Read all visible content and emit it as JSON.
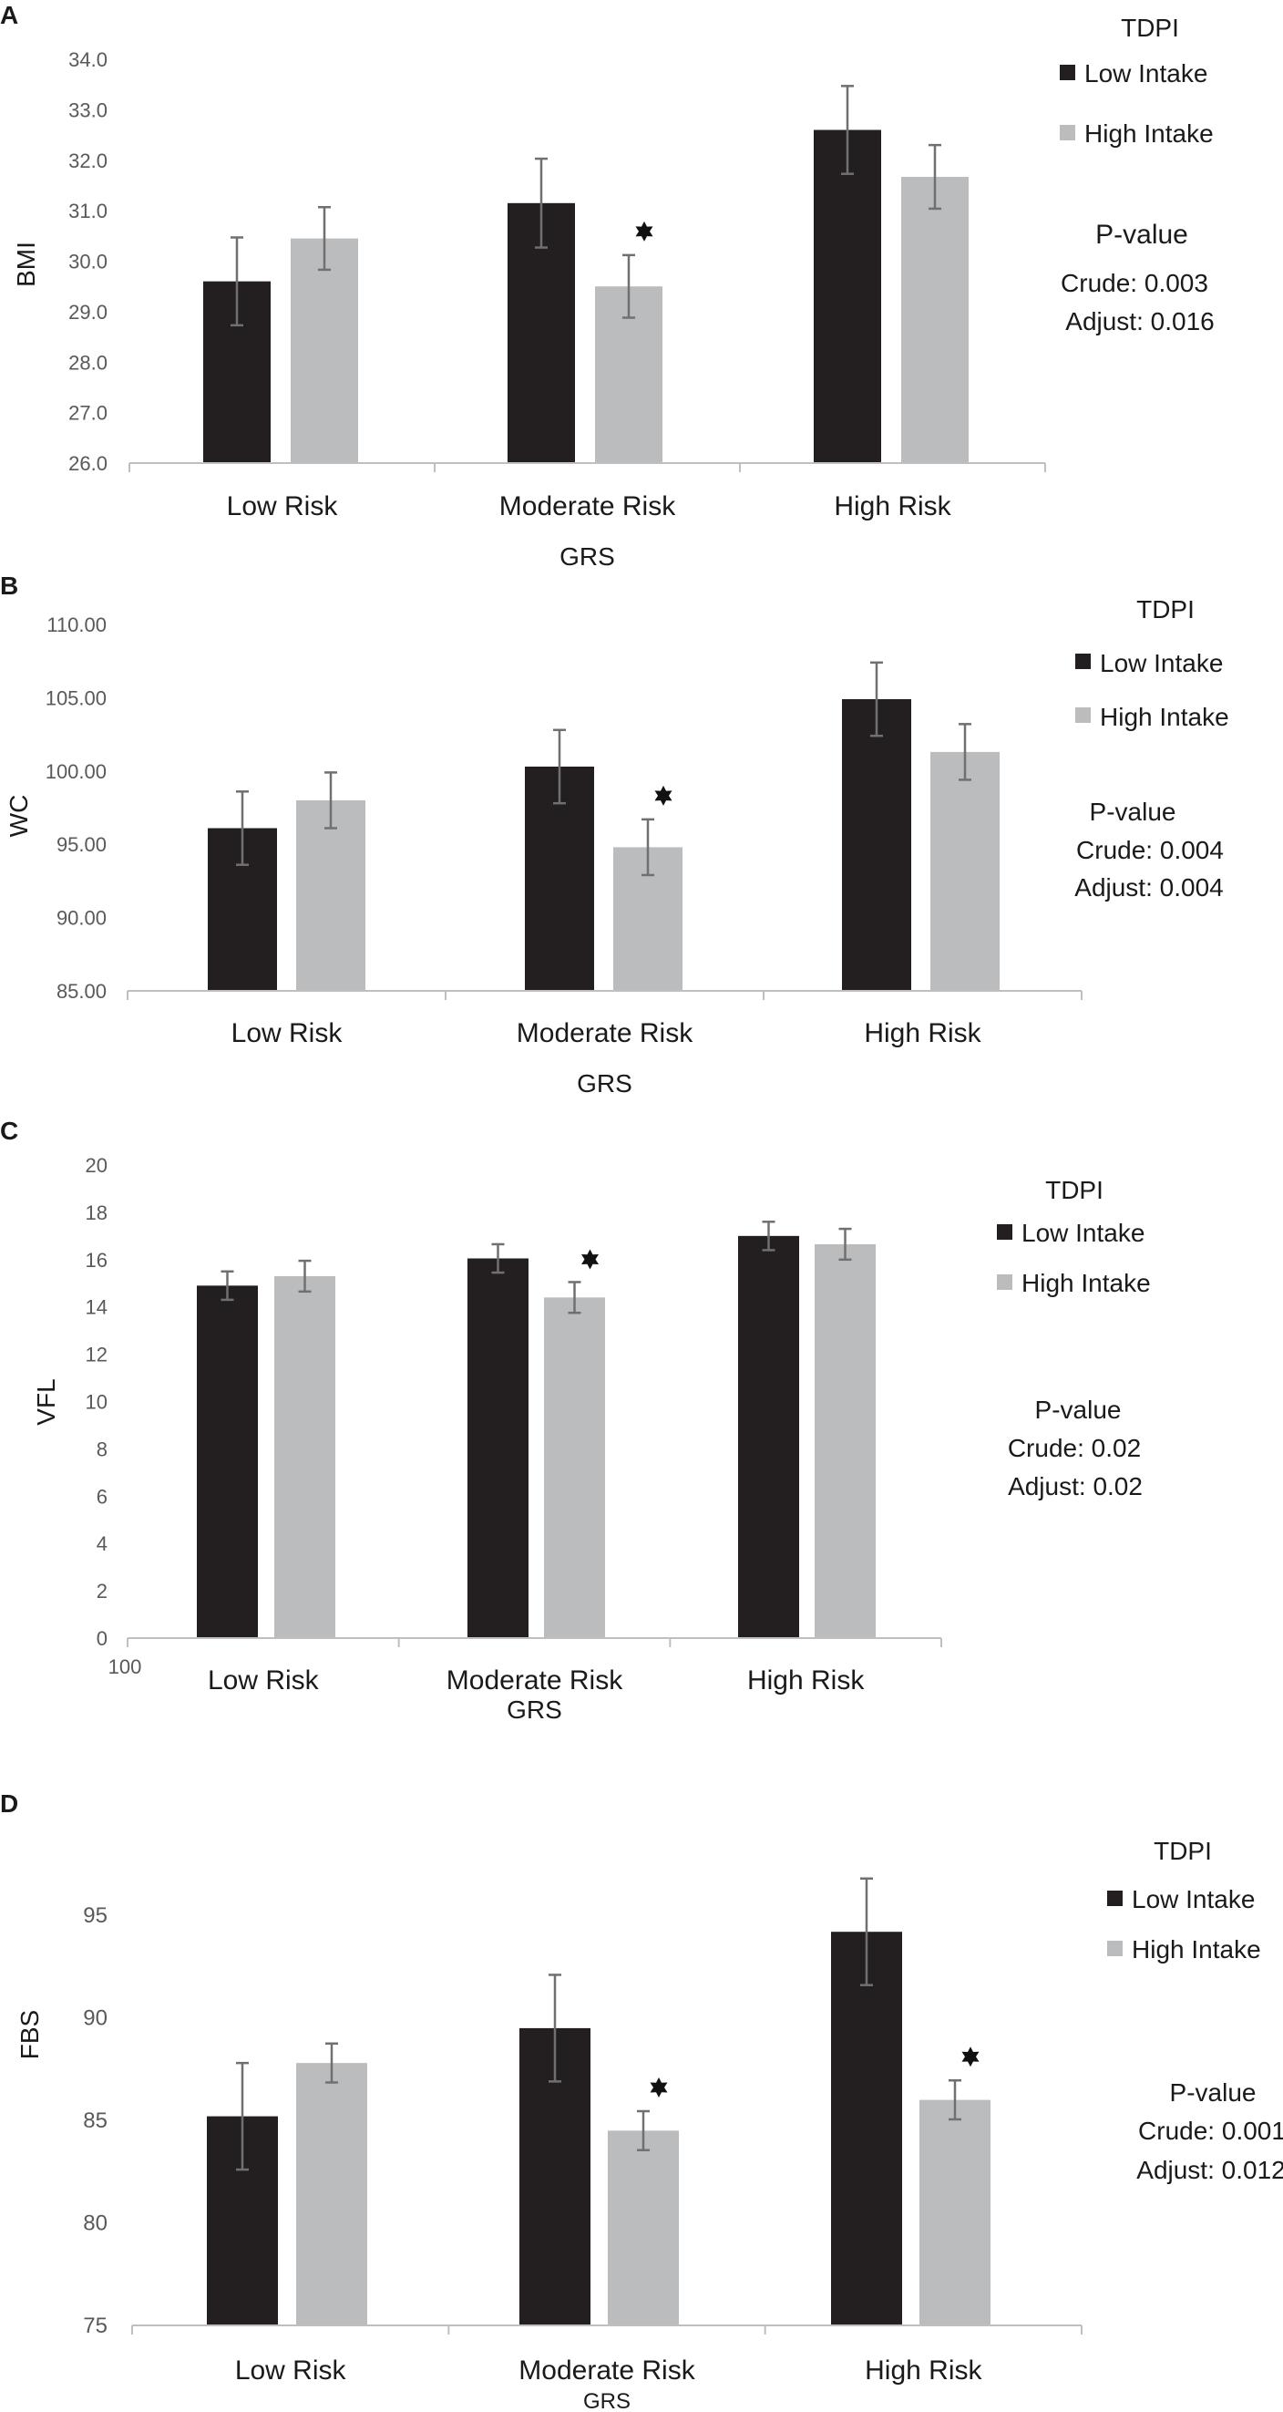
{
  "colors": {
    "low": "#231f20",
    "high": "#bbbcbe",
    "axis": "#bfbfbf",
    "tick": "#595959",
    "text": "#1a1a1a",
    "err": "#707070"
  },
  "chart_data": [
    {
      "type": "bar",
      "panel": "A",
      "ylabel": "BMI",
      "xlabel": "GRS",
      "categories": [
        "Low Risk",
        "Moderate Risk",
        "High Risk"
      ],
      "ylim": [
        26,
        34
      ],
      "ticks": [
        "26.0",
        "27.0",
        "28.0",
        "29.0",
        "30.0",
        "31.0",
        "32.0",
        "33.0",
        "34.0"
      ],
      "series": [
        {
          "name": "Low Intake",
          "values": [
            29.6,
            31.15,
            32.6
          ],
          "err": [
            0.87,
            0.88,
            0.87
          ]
        },
        {
          "name": "High Intake",
          "values": [
            30.45,
            29.5,
            31.67
          ],
          "err": [
            0.62,
            0.62,
            0.63
          ]
        }
      ],
      "significant": [
        false,
        true,
        false
      ],
      "legend": {
        "title": "TDPI",
        "items": [
          "Low Intake",
          "High Intake"
        ]
      },
      "pvalue": {
        "title": "P-value",
        "crude": "Crude: 0.003",
        "adjust": "Adjust: 0.016"
      }
    },
    {
      "type": "bar",
      "panel": "B",
      "ylabel": "WC",
      "xlabel": "GRS",
      "categories": [
        "Low Risk",
        "Moderate Risk",
        "High Risk"
      ],
      "ylim": [
        85,
        110
      ],
      "ticks": [
        "85.00",
        "90.00",
        "95.00",
        "100.00",
        "105.00",
        "110.00"
      ],
      "series": [
        {
          "name": "Low Intake",
          "values": [
            96.1,
            100.3,
            104.9
          ],
          "err": [
            2.5,
            2.5,
            2.5
          ]
        },
        {
          "name": "High Intake",
          "values": [
            98.0,
            94.8,
            101.3
          ],
          "err": [
            1.9,
            1.9,
            1.9
          ]
        }
      ],
      "significant": [
        false,
        true,
        false
      ],
      "legend": {
        "title": "TDPI",
        "items": [
          "Low Intake",
          "High Intake"
        ]
      },
      "pvalue": {
        "title": "P-value",
        "crude": "Crude: 0.004",
        "adjust": "Adjust: 0.004"
      }
    },
    {
      "type": "bar",
      "panel": "C",
      "ylabel": "VFL",
      "xlabel": "GRS",
      "extra_label": "100",
      "categories": [
        "Low Risk",
        "Moderate Risk",
        "High Risk"
      ],
      "ylim": [
        0,
        20
      ],
      "ticks": [
        "0",
        "2",
        "4",
        "6",
        "8",
        "10",
        "12",
        "14",
        "16",
        "18",
        "20"
      ],
      "series": [
        {
          "name": "Low Intake",
          "values": [
            14.9,
            16.05,
            17.0
          ],
          "err": [
            0.6,
            0.6,
            0.6
          ]
        },
        {
          "name": "High Intake",
          "values": [
            15.3,
            14.4,
            16.65
          ],
          "err": [
            0.65,
            0.65,
            0.65
          ]
        }
      ],
      "significant": [
        false,
        true,
        false
      ],
      "legend": {
        "title": "TDPI",
        "items": [
          "Low Intake",
          "High Intake"
        ]
      },
      "pvalue": {
        "title": "P-value",
        "crude": "Crude: 0.02",
        "adjust": "Adjust: 0.02"
      }
    },
    {
      "type": "bar",
      "panel": "D",
      "ylabel": "FBS",
      "xlabel": "GRS",
      "categories": [
        "Low Risk",
        "Moderate Risk",
        "High Risk"
      ],
      "ylim": [
        75,
        97.5
      ],
      "ticks": [
        "75",
        "80",
        "85",
        "90",
        "95"
      ],
      "series": [
        {
          "name": "Low Intake",
          "values": [
            85.2,
            89.5,
            94.2
          ],
          "err": [
            2.6,
            2.6,
            2.6
          ]
        },
        {
          "name": "High Intake",
          "values": [
            87.8,
            84.5,
            86.0
          ],
          "err": [
            0.95,
            0.95,
            0.95
          ]
        }
      ],
      "significant": [
        false,
        true,
        true
      ],
      "legend": {
        "title": "TDPI",
        "items": [
          "Low Intake",
          "High Intake"
        ]
      },
      "pvalue": {
        "title": "P-value",
        "crude": "Crude: 0.001",
        "adjust": "Adjust: 0.012"
      }
    }
  ]
}
